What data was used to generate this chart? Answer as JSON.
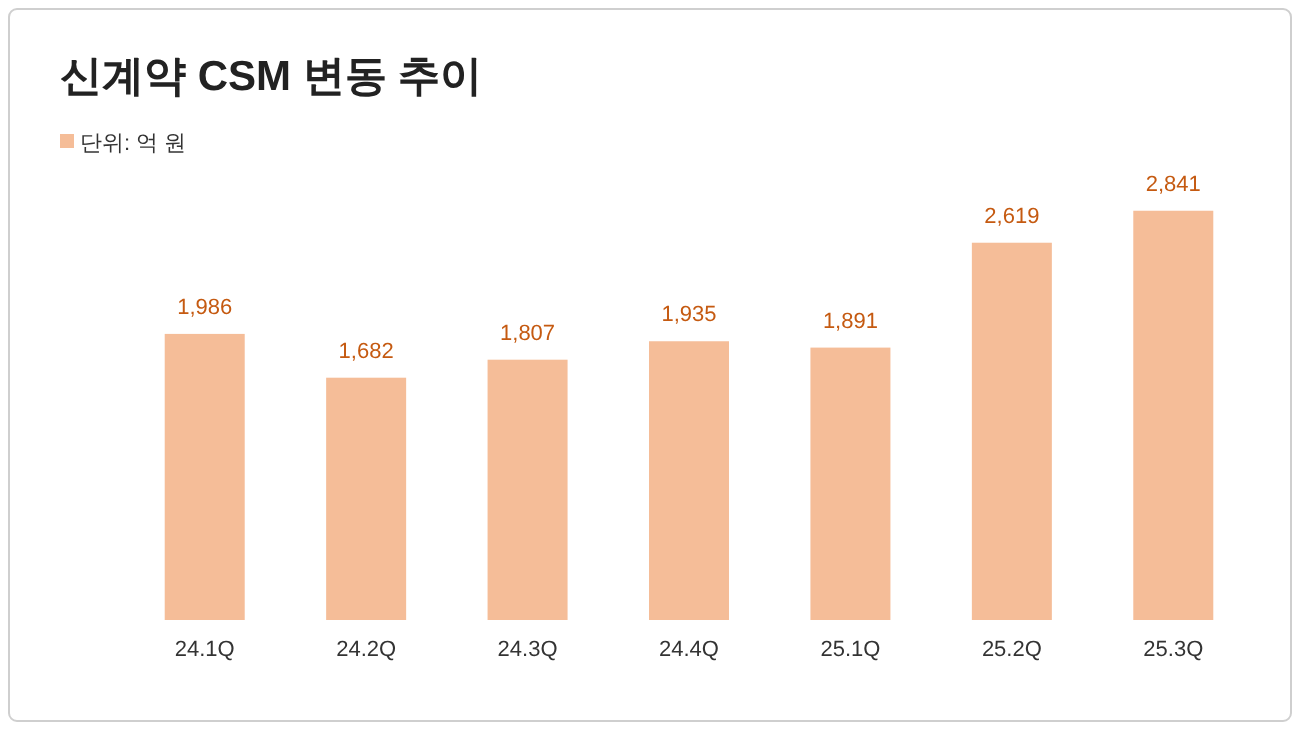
{
  "chart_data": {
    "type": "bar",
    "title": "신계약 CSM 변동 추이",
    "annotations": [
      "단위: 억 원"
    ],
    "categories": [
      "24.1Q",
      "24.2Q",
      "24.3Q",
      "24.4Q",
      "25.1Q",
      "25.2Q",
      "25.3Q"
    ],
    "values": [
      1986,
      1682,
      1807,
      1935,
      1891,
      2619,
      2841
    ],
    "value_labels": [
      "1,986",
      "1,682",
      "1,807",
      "1,935",
      "1,891",
      "2,619",
      "2,841"
    ],
    "color": "#f5bd98"
  }
}
